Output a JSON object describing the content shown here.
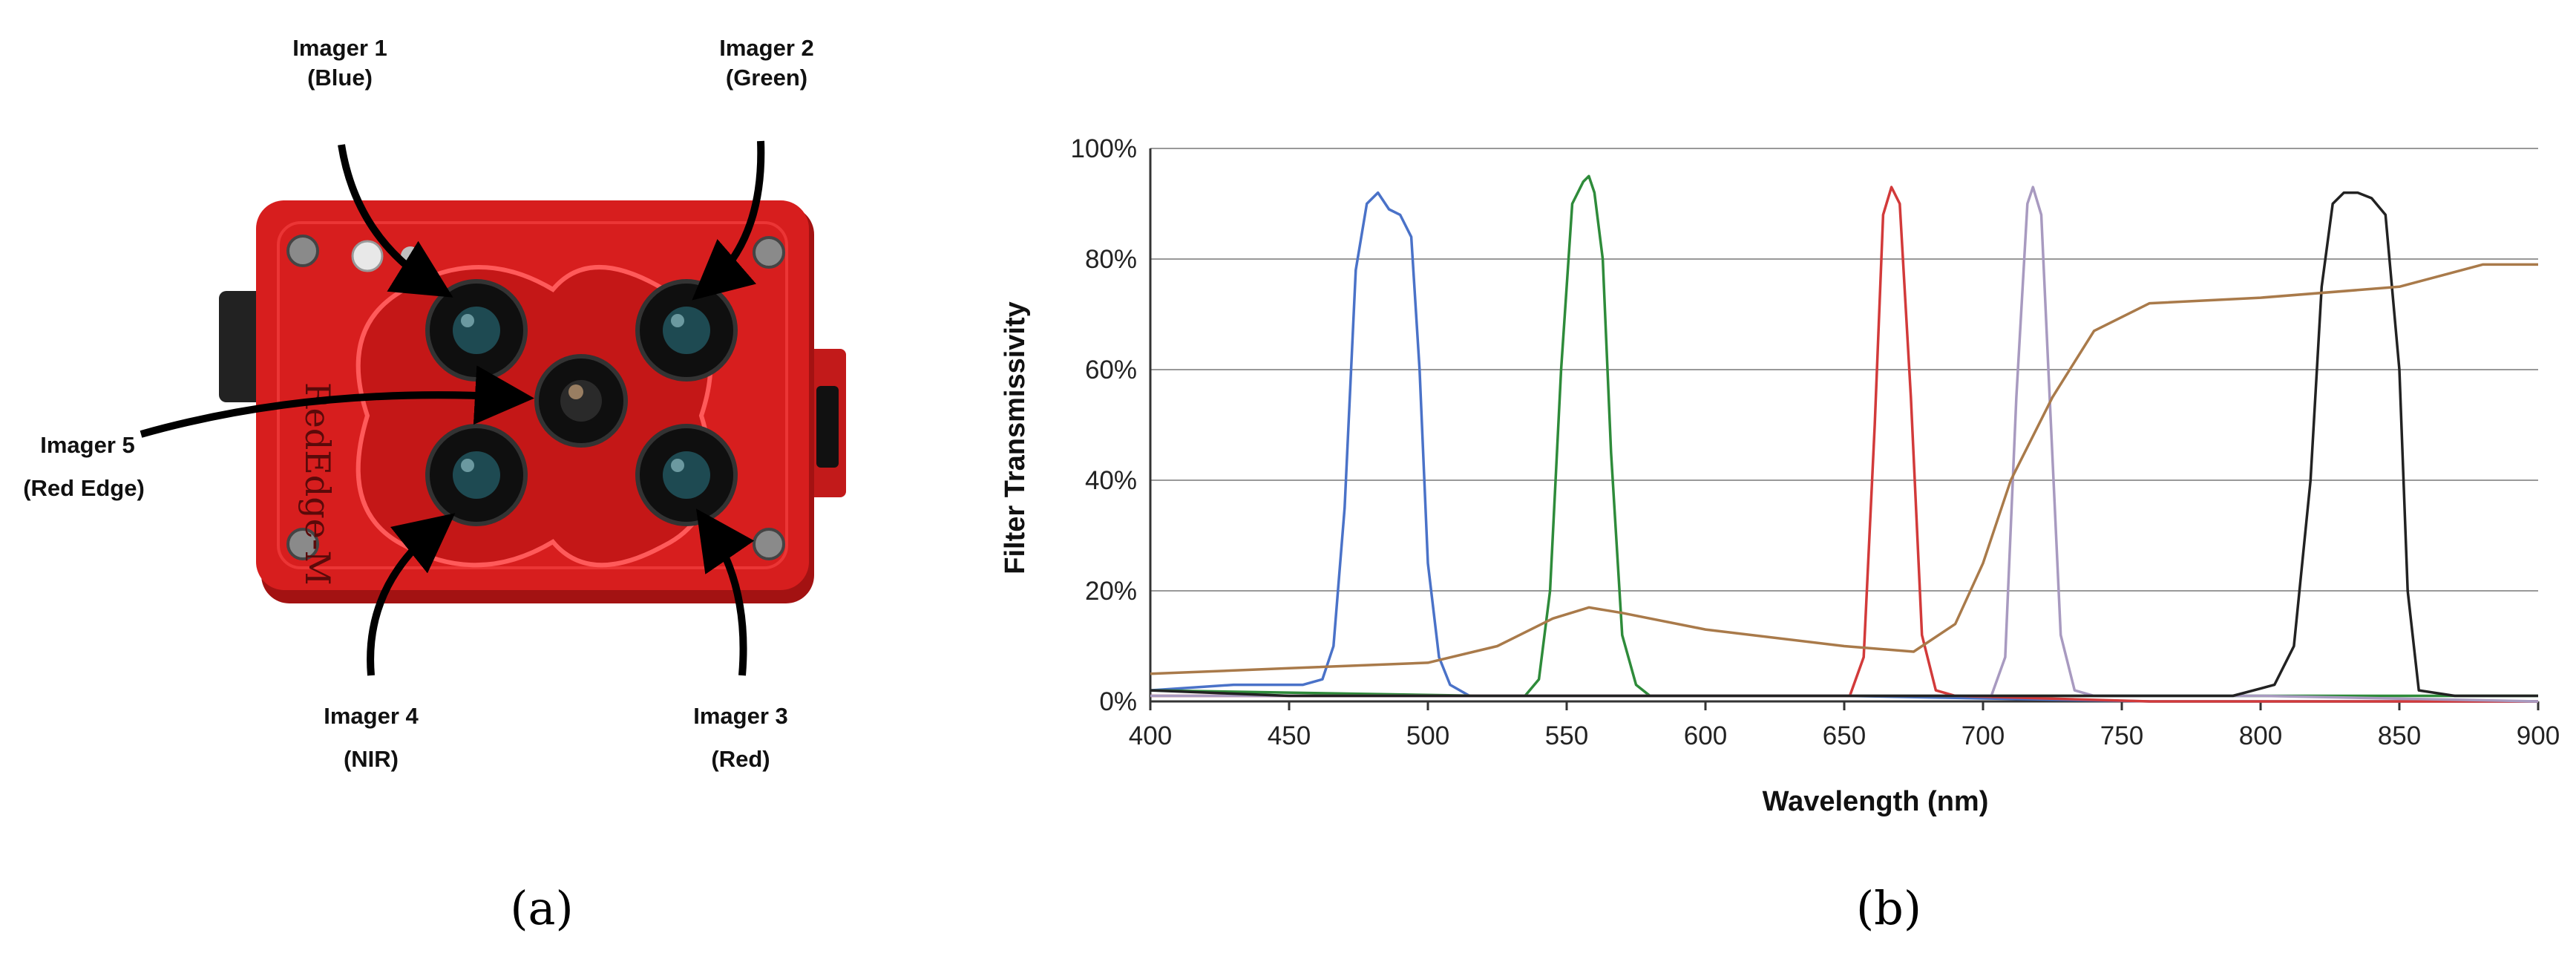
{
  "panel_a": {
    "caption": "(a)",
    "camera_text": "RedEdge-M",
    "labels": [
      {
        "line1": "Imager 1",
        "line2": "(Blue)"
      },
      {
        "line1": "Imager 2",
        "line2": "(Green)"
      },
      {
        "line1": "Imager 5",
        "line2": "(Red Edge)"
      },
      {
        "line1": "Imager 4",
        "line2": "(NIR)"
      },
      {
        "line1": "Imager 3",
        "line2": "(Red)"
      }
    ],
    "colors": {
      "body": "#d71e1e",
      "body_dark": "#a31212",
      "lens": "#151515",
      "glass": "#1e4a52"
    }
  },
  "panel_b": {
    "caption": "(b)",
    "chart_data": {
      "type": "line",
      "title": "",
      "xlabel": "Wavelength (nm)",
      "ylabel": "Filter Transmissivity",
      "xlim": [
        400,
        900
      ],
      "ylim": [
        0,
        100
      ],
      "xticks": [
        400,
        450,
        500,
        550,
        600,
        650,
        700,
        750,
        800,
        850,
        900
      ],
      "yticks": [
        0,
        20,
        40,
        60,
        80,
        100
      ],
      "ytick_labels": [
        "0%",
        "20%",
        "40%",
        "60%",
        "80%",
        "100%"
      ],
      "grid": "horizontal",
      "legend": "none",
      "series": [
        {
          "color": "#4a72c8",
          "x": [
            400,
            430,
            455,
            462,
            466,
            470,
            474,
            478,
            482,
            486,
            490,
            494,
            497,
            500,
            504,
            508,
            515,
            560,
            650,
            760,
            900
          ],
          "y": [
            2,
            3,
            3,
            4,
            10,
            35,
            78,
            90,
            92,
            89,
            88,
            84,
            60,
            25,
            8,
            3,
            1,
            1,
            1,
            0,
            0
          ]
        },
        {
          "color": "#2e8b3a",
          "x": [
            400,
            520,
            535,
            540,
            544,
            548,
            552,
            556,
            558,
            560,
            563,
            566,
            570,
            575,
            580,
            600,
            700,
            900
          ],
          "y": [
            2,
            1,
            1,
            4,
            20,
            60,
            90,
            94,
            95,
            92,
            80,
            45,
            12,
            3,
            1,
            1,
            1,
            1
          ]
        },
        {
          "color": "#d23a3a",
          "x": [
            400,
            640,
            652,
            657,
            661,
            664,
            667,
            670,
            674,
            678,
            683,
            690,
            760,
            900
          ],
          "y": [
            1,
            1,
            1,
            8,
            50,
            88,
            93,
            90,
            55,
            12,
            2,
            1,
            0,
            0
          ]
        },
        {
          "color": "#a89ac0",
          "x": [
            400,
            690,
            703,
            708,
            712,
            716,
            718,
            721,
            724,
            728,
            733,
            740,
            800,
            900
          ],
          "y": [
            1,
            1,
            1,
            8,
            55,
            90,
            93,
            88,
            55,
            12,
            2,
            1,
            1,
            0
          ]
        },
        {
          "color": "#222222",
          "x": [
            400,
            450,
            500,
            600,
            700,
            790,
            805,
            812,
            818,
            822,
            826,
            830,
            835,
            840,
            845,
            850,
            853,
            857,
            870,
            900
          ],
          "y": [
            2,
            1,
            1,
            1,
            1,
            1,
            3,
            10,
            40,
            75,
            90,
            92,
            92,
            91,
            88,
            60,
            20,
            2,
            1,
            1
          ]
        },
        {
          "color": "#a97a4a",
          "x": [
            400,
            450,
            500,
            525,
            545,
            558,
            570,
            600,
            650,
            675,
            690,
            700,
            710,
            725,
            740,
            760,
            800,
            850,
            880,
            900
          ],
          "y": [
            5,
            6,
            7,
            10,
            15,
            17,
            16,
            13,
            10,
            9,
            14,
            25,
            40,
            55,
            67,
            72,
            73,
            75,
            79,
            79
          ]
        }
      ]
    }
  }
}
